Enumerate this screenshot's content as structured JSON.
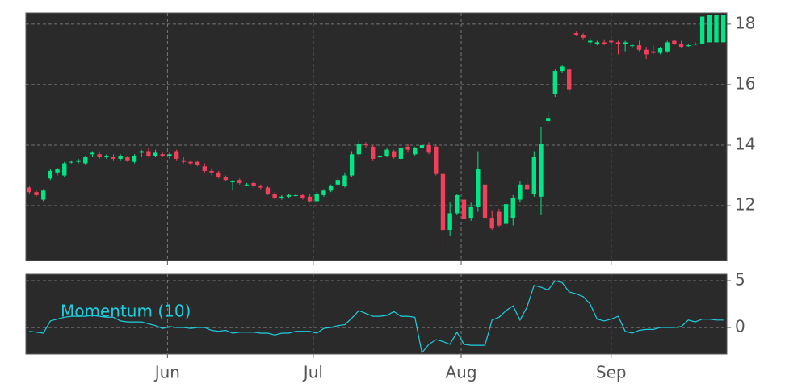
{
  "chart_data": [
    {
      "type": "candlestick",
      "up_color": "#00e585",
      "down_color": "#f0405c",
      "xlim": [
        -0.5,
        99.5
      ],
      "ylim": [
        10.19,
        18.37
      ],
      "yticks": [
        12,
        14,
        16,
        18
      ],
      "grid": true,
      "ohlc": [
        [
          12.6,
          12.65,
          12.4,
          12.45
        ],
        [
          12.45,
          12.5,
          12.3,
          12.35
        ],
        [
          12.2,
          12.55,
          12.15,
          12.5
        ],
        [
          12.9,
          13.2,
          12.85,
          13.15
        ],
        [
          13.1,
          13.25,
          13.0,
          13.2
        ],
        [
          13.0,
          13.45,
          12.95,
          13.4
        ],
        [
          13.45,
          13.5,
          13.4,
          13.45
        ],
        [
          13.45,
          13.55,
          13.4,
          13.5
        ],
        [
          13.4,
          13.65,
          13.35,
          13.6
        ],
        [
          13.7,
          13.8,
          13.6,
          13.75
        ],
        [
          13.7,
          13.8,
          13.55,
          13.6
        ],
        [
          13.6,
          13.7,
          13.55,
          13.65
        ],
        [
          13.6,
          13.7,
          13.5,
          13.55
        ],
        [
          13.55,
          13.7,
          13.5,
          13.65
        ],
        [
          13.6,
          13.65,
          13.45,
          13.5
        ],
        [
          13.45,
          13.7,
          13.4,
          13.65
        ],
        [
          13.75,
          13.85,
          13.6,
          13.8
        ],
        [
          13.8,
          13.9,
          13.6,
          13.65
        ],
        [
          13.65,
          13.85,
          13.6,
          13.75
        ],
        [
          13.7,
          13.75,
          13.6,
          13.65
        ],
        [
          13.65,
          13.75,
          13.55,
          13.7
        ],
        [
          13.8,
          13.85,
          13.5,
          13.55
        ],
        [
          13.5,
          13.6,
          13.4,
          13.45
        ],
        [
          13.45,
          13.5,
          13.35,
          13.4
        ],
        [
          13.45,
          13.5,
          13.3,
          13.35
        ],
        [
          13.3,
          13.4,
          13.1,
          13.15
        ],
        [
          13.15,
          13.25,
          13.0,
          13.1
        ],
        [
          13.1,
          13.15,
          12.9,
          12.95
        ],
        [
          12.95,
          13.0,
          12.8,
          12.85
        ],
        [
          12.8,
          12.85,
          12.5,
          12.8
        ],
        [
          12.85,
          12.9,
          12.7,
          12.75
        ],
        [
          12.7,
          12.75,
          12.65,
          12.7
        ],
        [
          12.75,
          12.8,
          12.6,
          12.65
        ],
        [
          12.65,
          12.7,
          12.55,
          12.6
        ],
        [
          12.6,
          12.65,
          12.35,
          12.4
        ],
        [
          12.4,
          12.45,
          12.2,
          12.25
        ],
        [
          12.25,
          12.35,
          12.2,
          12.3
        ],
        [
          12.3,
          12.4,
          12.25,
          12.35
        ],
        [
          12.35,
          12.4,
          12.3,
          12.35
        ],
        [
          12.35,
          12.4,
          12.2,
          12.25
        ],
        [
          12.3,
          12.4,
          12.1,
          12.15
        ],
        [
          12.15,
          12.45,
          12.1,
          12.4
        ],
        [
          12.35,
          12.55,
          12.3,
          12.5
        ],
        [
          12.5,
          12.7,
          12.45,
          12.65
        ],
        [
          12.7,
          12.9,
          12.65,
          12.85
        ],
        [
          12.65,
          13.1,
          12.6,
          13.0
        ],
        [
          13.0,
          13.8,
          12.95,
          13.7
        ],
        [
          13.7,
          14.15,
          13.6,
          14.05
        ],
        [
          14.05,
          14.1,
          13.9,
          14.0
        ],
        [
          13.95,
          14.0,
          13.5,
          13.55
        ],
        [
          13.6,
          13.7,
          13.55,
          13.65
        ],
        [
          13.65,
          13.9,
          13.6,
          13.85
        ],
        [
          13.8,
          13.85,
          13.55,
          13.6
        ],
        [
          13.55,
          13.95,
          13.5,
          13.9
        ],
        [
          13.95,
          14.05,
          13.75,
          13.85
        ],
        [
          13.7,
          13.95,
          13.65,
          13.9
        ],
        [
          13.9,
          14.05,
          13.85,
          14.0
        ],
        [
          14.0,
          14.1,
          13.7,
          13.75
        ],
        [
          13.95,
          14.05,
          13.0,
          13.05
        ],
        [
          13.05,
          13.1,
          10.5,
          11.2
        ],
        [
          11.2,
          12.1,
          11.0,
          11.75
        ],
        [
          11.75,
          12.4,
          11.7,
          12.35
        ],
        [
          12.2,
          12.4,
          11.55,
          11.55
        ],
        [
          11.6,
          12.1,
          11.5,
          11.95
        ],
        [
          11.95,
          13.8,
          11.8,
          13.2
        ],
        [
          12.7,
          12.9,
          11.4,
          11.6
        ],
        [
          11.6,
          11.85,
          11.2,
          11.25
        ],
        [
          11.8,
          11.9,
          11.3,
          11.35
        ],
        [
          11.4,
          12.1,
          11.3,
          12.05
        ],
        [
          11.6,
          12.35,
          11.35,
          12.25
        ],
        [
          12.2,
          12.8,
          12.1,
          12.7
        ],
        [
          12.7,
          12.9,
          12.5,
          12.55
        ],
        [
          12.4,
          13.8,
          12.3,
          13.6
        ],
        [
          12.3,
          14.6,
          11.7,
          14.05
        ],
        [
          14.8,
          15.1,
          14.7,
          14.9
        ],
        [
          15.7,
          16.5,
          15.6,
          16.45
        ],
        [
          16.45,
          16.65,
          16.4,
          16.6
        ],
        [
          16.5,
          16.55,
          15.7,
          15.85
        ],
        [
          17.7,
          17.75,
          17.6,
          17.65
        ],
        [
          17.65,
          17.7,
          17.5,
          17.55
        ],
        [
          17.4,
          17.55,
          17.3,
          17.45
        ],
        [
          17.35,
          17.45,
          17.3,
          17.4
        ],
        [
          17.4,
          17.5,
          17.3,
          17.35
        ],
        [
          17.45,
          17.5,
          17.3,
          17.4
        ],
        [
          17.4,
          17.45,
          17.0,
          17.35
        ],
        [
          17.35,
          17.45,
          17.1,
          17.4
        ],
        [
          17.3,
          17.35,
          17.2,
          17.3
        ],
        [
          17.3,
          17.45,
          17.1,
          17.15
        ],
        [
          17.15,
          17.25,
          16.85,
          17.0
        ],
        [
          17.1,
          17.3,
          17.0,
          17.05
        ],
        [
          17.05,
          17.25,
          17.0,
          17.2
        ],
        [
          17.1,
          17.45,
          17.05,
          17.4
        ],
        [
          17.45,
          17.5,
          17.3,
          17.35
        ],
        [
          17.35,
          17.45,
          17.2,
          17.25
        ],
        [
          17.3,
          17.35,
          17.25,
          17.3
        ],
        [
          17.35,
          17.4,
          17.3,
          17.35
        ],
        [
          17.35,
          18.25,
          17.35,
          18.25
        ],
        [
          17.4,
          18.3,
          17.4,
          18.3
        ],
        [
          17.4,
          18.3,
          17.4,
          18.3
        ],
        [
          17.4,
          18.3,
          17.4,
          18.3
        ]
      ]
    },
    {
      "type": "line",
      "xlim": [
        -0.5,
        99.5
      ],
      "xticks": [
        {
          "value": 19.7,
          "label": "Jun"
        },
        {
          "value": 40.5,
          "label": "Jul"
        },
        {
          "value": 61.6,
          "label": "Aug"
        },
        {
          "value": 83.0,
          "label": "Sep"
        }
      ],
      "ylim": [
        -2.84,
        5.69
      ],
      "yticks": [
        0,
        5
      ],
      "grid": true,
      "series": [
        {
          "name": "Momentum (10)",
          "color": "#1ccfe0",
          "values": [
            -0.4,
            -0.5,
            -0.6,
            0.7,
            0.9,
            1.1,
            1.2,
            1.2,
            1.2,
            1.3,
            1.2,
            1.1,
            1.1,
            0.7,
            0.6,
            0.6,
            0.6,
            0.4,
            0.2,
            -0.1,
            0.1,
            0.0,
            0.0,
            -0.1,
            0.0,
            0.0,
            -0.3,
            -0.4,
            -0.3,
            -0.6,
            -0.5,
            -0.5,
            -0.5,
            -0.6,
            -0.6,
            -0.8,
            -0.6,
            -0.6,
            -0.4,
            -0.4,
            -0.4,
            -0.6,
            -0.1,
            0.0,
            0.2,
            0.3,
            1.0,
            1.8,
            1.5,
            1.2,
            1.2,
            1.3,
            1.7,
            1.2,
            1.2,
            1.1,
            -2.7,
            -1.8,
            -1.3,
            -1.5,
            -1.8,
            -0.5,
            -1.8,
            -1.9,
            -1.9,
            -1.9,
            0.8,
            1.1,
            1.8,
            2.3,
            0.8,
            2.2,
            4.5,
            4.3,
            4.0,
            5.0,
            4.8,
            3.8,
            3.6,
            3.3,
            2.5,
            0.9,
            0.7,
            0.9,
            1.2,
            -0.4,
            -0.6,
            -0.3,
            -0.2,
            -0.2,
            0.0,
            0.0,
            0.0,
            0.1,
            0.8,
            0.6,
            0.9,
            0.9,
            0.8,
            0.8
          ]
        }
      ]
    }
  ]
}
